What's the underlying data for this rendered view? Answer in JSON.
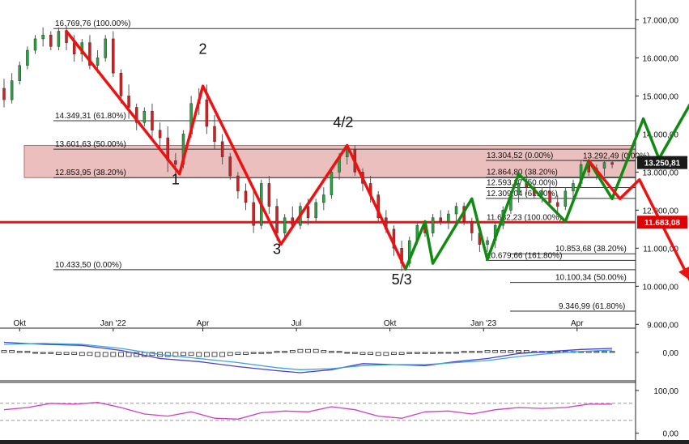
{
  "chart_data": {
    "type": "candlestick",
    "price_axis": {
      "ticks": [
        "17.000,00",
        "16.000,00",
        "15.000,00",
        "14.000,00",
        "13.000,00",
        "12.000,00",
        "11.000,00",
        "10.000,00",
        "9.000,00"
      ],
      "tick_values": [
        17000,
        16000,
        15000,
        14000,
        13000,
        12000,
        11000,
        10000,
        9000
      ],
      "range": [
        8900,
        17350
      ]
    },
    "time_axis": {
      "labels": [
        "Okt",
        "Jan '22",
        "Apr",
        "Jul",
        "Okt",
        "Jan '23",
        "Apr"
      ],
      "range": [
        0,
        81
      ]
    },
    "price_tags": [
      {
        "text": "13.250,81",
        "value": 13250,
        "color": "#1a1a1a"
      },
      {
        "text": "11.683,08",
        "value": 11683,
        "color": "#e00000"
      }
    ],
    "fib_levels_left": [
      {
        "text": "16.769,76 (100.00%)",
        "value": 16770
      },
      {
        "text": "14.349,31 (61.80%)",
        "value": 14350
      },
      {
        "text": "13.601,63 (50.00%)",
        "value": 13602
      },
      {
        "text": "12.853,95 (38.20%)",
        "value": 12854
      },
      {
        "text": "10.433,50 (0.00%)",
        "value": 10434
      }
    ],
    "fib_levels_right": [
      {
        "text": "13.304,52 (0.00%)",
        "value": 13305
      },
      {
        "text": "13.292,49 (0.00%)",
        "value": 13292
      },
      {
        "text": "12.864,80 (38.20%)",
        "value": 12865
      },
      {
        "text": "12.593,37 (50.00%)",
        "value": 12593
      },
      {
        "text": "12.309,04 (61.80%)",
        "value": 12309
      },
      {
        "text": "11.682,23 (100.00%)",
        "value": 11682
      },
      {
        "text": "10.853,68 (38.20%)",
        "value": 10854
      },
      {
        "text": "10.679,66 (161.80%)",
        "value": 10680
      },
      {
        "text": "10.100,34 (50.00%)",
        "value": 10100
      },
      {
        "text": "9.346,99 (61.80%)",
        "value": 9347
      }
    ],
    "resistance_zone": {
      "top": 13700,
      "bottom": 12854
    },
    "support_level": 11683,
    "wave_labels": [
      {
        "text": "1",
        "t": 22.0,
        "v": 12680
      },
      {
        "text": "2",
        "t": 25.5,
        "v": 16100
      },
      {
        "text": "3",
        "t": 35.0,
        "v": 10850
      },
      {
        "text": "4/2",
        "t": 43.5,
        "v": 14180
      },
      {
        "text": "5/3",
        "t": 51.0,
        "v": 10050
      }
    ],
    "red_path": [
      [
        8,
        16700
      ],
      [
        22.5,
        12950
      ],
      [
        25.5,
        15260
      ],
      [
        35.5,
        11100
      ],
      [
        44,
        13700
      ],
      [
        51.5,
        10450
      ]
    ],
    "green_path": [
      [
        51.5,
        10450
      ],
      [
        54,
        11700
      ],
      [
        55,
        10600
      ],
      [
        60,
        12300
      ],
      [
        62,
        10700
      ],
      [
        66,
        12950
      ],
      [
        72,
        11700
      ],
      [
        75,
        13300
      ],
      [
        78,
        12300
      ],
      [
        82,
        14400
      ],
      [
        84,
        13350
      ],
      [
        90,
        15500
      ]
    ],
    "red_projection": [
      [
        75,
        13300
      ],
      [
        79,
        12300
      ],
      [
        81.5,
        12800
      ],
      [
        88,
        10150
      ]
    ],
    "candles": [
      [
        0,
        15200,
        15450,
        14700,
        14900
      ],
      [
        1,
        14900,
        15600,
        14800,
        15400
      ],
      [
        2,
        15400,
        15900,
        15300,
        15800
      ],
      [
        3,
        15800,
        16300,
        15700,
        16200
      ],
      [
        4,
        16200,
        16600,
        16100,
        16500
      ],
      [
        5,
        16500,
        16800,
        16300,
        16600
      ],
      [
        6,
        16600,
        16700,
        16200,
        16300
      ],
      [
        7,
        16300,
        16800,
        16200,
        16700
      ],
      [
        8,
        16700,
        16850,
        16200,
        16400
      ],
      [
        9,
        16400,
        16600,
        15900,
        16100
      ],
      [
        10,
        16100,
        16500,
        15900,
        16400
      ],
      [
        11,
        16400,
        16600,
        15700,
        15800
      ],
      [
        12,
        15800,
        16200,
        15600,
        16000
      ],
      [
        13,
        16000,
        16600,
        15900,
        16500
      ],
      [
        14,
        16500,
        16700,
        15500,
        15600
      ],
      [
        15,
        15600,
        15700,
        14800,
        15000
      ],
      [
        16,
        15000,
        15300,
        14400,
        14700
      ],
      [
        17,
        14700,
        14800,
        14100,
        14300
      ],
      [
        18,
        14300,
        14700,
        14200,
        14600
      ],
      [
        19,
        14600,
        14800,
        13900,
        14100
      ],
      [
        20,
        14100,
        14300,
        13600,
        13900
      ],
      [
        21,
        13900,
        14200,
        13000,
        13300
      ],
      [
        22,
        13300,
        13500,
        12900,
        13200
      ],
      [
        23,
        13200,
        14100,
        13100,
        14000
      ],
      [
        24,
        14000,
        15000,
        13900,
        14800
      ],
      [
        25,
        14800,
        15200,
        14500,
        14900
      ],
      [
        26,
        14900,
        15300,
        14000,
        14200
      ],
      [
        27,
        14200,
        14500,
        13600,
        13800
      ],
      [
        28,
        13800,
        14000,
        13200,
        13400
      ],
      [
        29,
        13400,
        13500,
        12800,
        12900
      ],
      [
        30,
        12900,
        13000,
        12300,
        12500
      ],
      [
        31,
        12500,
        12700,
        12000,
        12200
      ],
      [
        32,
        12200,
        12500,
        11400,
        11600
      ],
      [
        33,
        11600,
        12800,
        11500,
        12700
      ],
      [
        34,
        12700,
        12900,
        11900,
        12100
      ],
      [
        35,
        12100,
        12300,
        11200,
        11400
      ],
      [
        36,
        11400,
        11900,
        11300,
        11800
      ],
      [
        37,
        11800,
        12100,
        11500,
        11600
      ],
      [
        38,
        11600,
        12200,
        11500,
        12100
      ],
      [
        39,
        12100,
        12300,
        11600,
        11800
      ],
      [
        40,
        11800,
        12300,
        11700,
        12200
      ],
      [
        41,
        12200,
        12600,
        12000,
        12400
      ],
      [
        42,
        12400,
        13100,
        12300,
        13000
      ],
      [
        43,
        13000,
        13500,
        12800,
        13400
      ],
      [
        44,
        13400,
        13700,
        13200,
        13600
      ],
      [
        45,
        13600,
        13700,
        12900,
        13000
      ],
      [
        46,
        13000,
        13100,
        12500,
        12700
      ],
      [
        47,
        12700,
        12900,
        12200,
        12400
      ],
      [
        48,
        12400,
        12500,
        11700,
        11800
      ],
      [
        49,
        11800,
        12000,
        11400,
        11500
      ],
      [
        50,
        11500,
        11600,
        10800,
        11000
      ],
      [
        51,
        11000,
        11200,
        10400,
        10600
      ],
      [
        52,
        10600,
        11300,
        10500,
        11200
      ],
      [
        53,
        11200,
        11700,
        11100,
        11600
      ],
      [
        54,
        11600,
        11700,
        11300,
        11400
      ],
      [
        55,
        11400,
        11900,
        11300,
        11800
      ],
      [
        56,
        11800,
        12000,
        11600,
        11700
      ],
      [
        57,
        11700,
        12000,
        11500,
        11900
      ],
      [
        58,
        11900,
        12200,
        11700,
        12100
      ],
      [
        59,
        12100,
        12200,
        11600,
        11700
      ],
      [
        60,
        11700,
        11800,
        11200,
        11400
      ],
      [
        61,
        11400,
        11500,
        10900,
        11100
      ],
      [
        62,
        11100,
        11300,
        10900,
        11200
      ],
      [
        63,
        11200,
        11700,
        11000,
        11600
      ],
      [
        64,
        11600,
        12100,
        11500,
        12000
      ],
      [
        65,
        12000,
        12500,
        11900,
        12400
      ],
      [
        66,
        12400,
        12800,
        12200,
        12700
      ],
      [
        67,
        12700,
        12900,
        12400,
        12600
      ],
      [
        68,
        12600,
        12700,
        12300,
        12400
      ],
      [
        69,
        12400,
        12600,
        12200,
        12500
      ],
      [
        70,
        12500,
        12700,
        12100,
        12200
      ],
      [
        71,
        12200,
        12400,
        11900,
        12100
      ],
      [
        72,
        12100,
        12600,
        12000,
        12500
      ],
      [
        73,
        12500,
        12800,
        12300,
        12700
      ],
      [
        74,
        12700,
        13300,
        12600,
        13200
      ],
      [
        75,
        13200,
        13300,
        12900,
        13000
      ],
      [
        76,
        13000,
        13200,
        12800,
        13100
      ],
      [
        77,
        13100,
        13300,
        12900,
        13250
      ],
      [
        78,
        13250,
        13300,
        13100,
        13200
      ]
    ],
    "macd_panel": {
      "ticks": [
        "0,00"
      ],
      "tick_values": [
        0
      ],
      "range": [
        -1.4,
        1.0
      ]
    },
    "macd_line": [
      [
        0,
        0.5
      ],
      [
        5,
        0.4
      ],
      [
        10,
        0.35
      ],
      [
        15,
        0.1
      ],
      [
        20,
        -0.3
      ],
      [
        25,
        -0.45
      ],
      [
        30,
        -0.7
      ],
      [
        35,
        -0.9
      ],
      [
        38,
        -1.0
      ],
      [
        42,
        -0.85
      ],
      [
        46,
        -0.55
      ],
      [
        50,
        -0.6
      ],
      [
        54,
        -0.65
      ],
      [
        58,
        -0.45
      ],
      [
        62,
        -0.3
      ],
      [
        66,
        -0.05
      ],
      [
        70,
        0.05
      ],
      [
        74,
        0.15
      ],
      [
        78,
        0.2
      ]
    ],
    "signal_line": [
      [
        0,
        0.4
      ],
      [
        5,
        0.45
      ],
      [
        10,
        0.4
      ],
      [
        15,
        0.2
      ],
      [
        20,
        -0.1
      ],
      [
        25,
        -0.3
      ],
      [
        30,
        -0.5
      ],
      [
        35,
        -0.75
      ],
      [
        38,
        -0.85
      ],
      [
        42,
        -0.8
      ],
      [
        46,
        -0.65
      ],
      [
        50,
        -0.6
      ],
      [
        54,
        -0.6
      ],
      [
        58,
        -0.5
      ],
      [
        62,
        -0.4
      ],
      [
        66,
        -0.2
      ],
      [
        70,
        -0.05
      ],
      [
        74,
        0.05
      ],
      [
        78,
        0.12
      ]
    ],
    "histogram": [
      0.1,
      0.1,
      0.05,
      0.05,
      0,
      -0.05,
      -0.05,
      -0.1,
      -0.1,
      -0.1,
      -0.15,
      -0.15,
      -0.2,
      -0.2,
      -0.2,
      -0.2,
      -0.2,
      -0.2,
      -0.2,
      -0.15,
      -0.2,
      -0.2,
      -0.2,
      -0.15,
      -0.15,
      -0.2,
      -0.2,
      -0.2,
      -0.2,
      -0.15,
      -0.1,
      -0.1,
      -0.05,
      -0.05,
      0,
      0.05,
      0.05,
      0.1,
      0.15,
      0.15,
      0.15,
      0.1,
      0.05,
      0.05,
      0,
      -0.05,
      -0.1,
      -0.1,
      -0.15,
      -0.15,
      -0.1,
      -0.1,
      -0.05,
      -0.05,
      -0.05,
      -0.05,
      0,
      0,
      0,
      0.05,
      0.05,
      0.05,
      0.1,
      0.1,
      0.1,
      0.1,
      0.1,
      0.1,
      0.05,
      0.05,
      0.05,
      0.05,
      0.05,
      0.05,
      0.05,
      0.05,
      0.05,
      0.05,
      0.05
    ],
    "osc_panel": {
      "ticks": [
        "100,00",
        "0,00"
      ],
      "tick_values": [
        100,
        0
      ],
      "range": [
        -10,
        115
      ],
      "dashed": [
        70,
        30
      ]
    },
    "osc_line": [
      [
        0,
        55
      ],
      [
        3,
        60
      ],
      [
        6,
        70
      ],
      [
        9,
        68
      ],
      [
        12,
        72
      ],
      [
        15,
        60
      ],
      [
        18,
        45
      ],
      [
        21,
        40
      ],
      [
        24,
        50
      ],
      [
        27,
        35
      ],
      [
        30,
        33
      ],
      [
        33,
        48
      ],
      [
        36,
        52
      ],
      [
        39,
        50
      ],
      [
        42,
        62
      ],
      [
        45,
        55
      ],
      [
        48,
        40
      ],
      [
        51,
        35
      ],
      [
        54,
        50
      ],
      [
        57,
        52
      ],
      [
        60,
        45
      ],
      [
        63,
        55
      ],
      [
        66,
        60
      ],
      [
        69,
        58
      ],
      [
        72,
        60
      ],
      [
        75,
        68
      ],
      [
        78,
        68
      ]
    ],
    "colors": {
      "bull": "#22a83a",
      "bear": "#e01b1b",
      "wave_red": "#ee1111",
      "wave_green": "#118a11",
      "zone_fill": "#e8b4b2",
      "zone_border": "#b05050",
      "macd": "#4b3ed0",
      "signal": "#3aa8d8",
      "osc": "#d040c0"
    }
  }
}
